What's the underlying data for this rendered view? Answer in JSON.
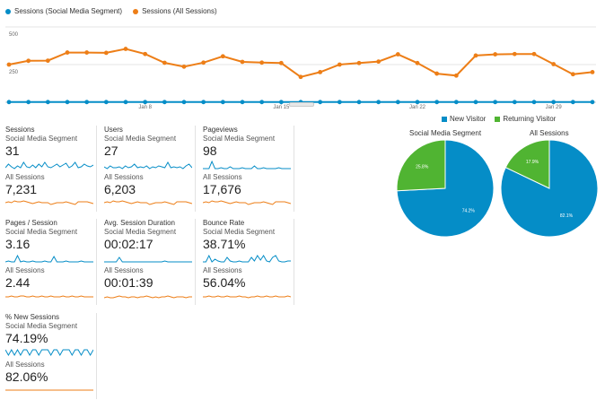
{
  "legend": {
    "series": [
      {
        "label": "Sessions (Social Media Segment)",
        "color": "#058dc7"
      },
      {
        "label": "Sessions (All Sessions)",
        "color": "#ed7e17"
      }
    ]
  },
  "chart_data": {
    "type": "line",
    "ylim": [
      0,
      500
    ],
    "yticks": [
      {
        "label": "500",
        "value": 500
      },
      {
        "label": "250",
        "value": 250
      }
    ],
    "x_tick_labels": [
      {
        "label": "Jan 8",
        "index": 7
      },
      {
        "label": "Jan 15",
        "index": 14
      },
      {
        "label": "Jan 22",
        "index": 21
      },
      {
        "label": "Jan 29",
        "index": 28
      }
    ],
    "series": [
      {
        "name": "Sessions (Social Media Segment)",
        "color": "#058dc7",
        "values": [
          1,
          1,
          1,
          1,
          1,
          1,
          1,
          1,
          1,
          1,
          1,
          1,
          1,
          1,
          1,
          1,
          1,
          1,
          1,
          1,
          1,
          1,
          1,
          1,
          1,
          1,
          1,
          1,
          1,
          1,
          1
        ]
      },
      {
        "name": "Sessions (All Sessions)",
        "color": "#ed7e17",
        "values": [
          250,
          275,
          276,
          330,
          330,
          328,
          354,
          320,
          262,
          236,
          263,
          305,
          268,
          263,
          260,
          168,
          200,
          250,
          260,
          270,
          318,
          260,
          190,
          177,
          310,
          318,
          320,
          320,
          253,
          186,
          200
        ]
      }
    ]
  },
  "metrics": [
    {
      "title": "Sessions",
      "segment_label": "Social Media Segment",
      "segment_value": "31",
      "all_label": "All Sessions",
      "all_value": "7,231",
      "spark_seg": [
        2,
        6,
        3,
        1,
        4,
        2,
        8,
        3,
        2,
        5,
        2,
        6,
        3,
        8,
        3,
        2,
        4,
        6,
        3,
        5,
        7,
        2,
        4,
        8,
        2,
        3,
        6,
        4,
        3,
        5
      ],
      "spark_all": [
        5,
        6,
        5,
        7,
        6,
        6,
        7,
        6,
        5,
        4,
        5,
        6,
        5,
        5,
        5,
        3,
        4,
        5,
        5,
        5,
        6,
        5,
        4,
        3,
        6,
        6,
        6,
        6,
        5,
        4
      ]
    },
    {
      "title": "Users",
      "segment_label": "Social Media Segment",
      "segment_value": "27",
      "all_label": "All Sessions",
      "all_value": "6,203",
      "spark_seg": [
        3,
        1,
        4,
        2,
        2,
        3,
        1,
        4,
        2,
        3,
        6,
        2,
        3,
        2,
        4,
        1,
        3,
        2,
        4,
        3,
        2,
        8,
        2,
        3,
        2,
        3,
        1,
        4,
        6,
        2
      ],
      "spark_all": [
        5,
        6,
        5,
        7,
        6,
        6,
        7,
        6,
        5,
        4,
        5,
        6,
        5,
        5,
        5,
        3,
        4,
        5,
        5,
        5,
        6,
        5,
        4,
        3,
        6,
        6,
        6,
        6,
        5,
        4
      ]
    },
    {
      "title": "Pageviews",
      "segment_label": "Social Media Segment",
      "segment_value": "98",
      "all_label": "All Sessions",
      "all_value": "17,676",
      "spark_seg": [
        1,
        1,
        1,
        9,
        1,
        1,
        2,
        1,
        1,
        3,
        1,
        1,
        1,
        2,
        1,
        1,
        1,
        4,
        1,
        1,
        2,
        1,
        1,
        1,
        1,
        2,
        1,
        1,
        1,
        1
      ],
      "spark_all": [
        5,
        6,
        5,
        7,
        6,
        6,
        7,
        6,
        5,
        4,
        5,
        6,
        5,
        5,
        5,
        3,
        4,
        5,
        5,
        5,
        6,
        5,
        4,
        3,
        6,
        6,
        6,
        6,
        5,
        4
      ]
    },
    {
      "title": "Pages / Session",
      "segment_label": "Social Media Segment",
      "segment_value": "3.16",
      "all_label": "All Sessions",
      "all_value": "2.44",
      "spark_seg": [
        1,
        2,
        1,
        1,
        8,
        1,
        2,
        1,
        1,
        2,
        1,
        1,
        1,
        2,
        1,
        1,
        7,
        1,
        1,
        1,
        2,
        1,
        1,
        1,
        1,
        2,
        1,
        1,
        1,
        1
      ],
      "spark_all": [
        4,
        4,
        5,
        4,
        4,
        5,
        5,
        4,
        4,
        5,
        4,
        4,
        5,
        4,
        4,
        5,
        4,
        4,
        4,
        5,
        4,
        4,
        5,
        4,
        4,
        5,
        4,
        4,
        4,
        4
      ]
    },
    {
      "title": "Avg. Session Duration",
      "segment_label": "Social Media Segment",
      "segment_value": "00:02:17",
      "all_label": "All Sessions",
      "all_value": "00:01:39",
      "spark_seg": [
        1,
        1,
        1,
        1,
        1,
        6,
        1,
        1,
        1,
        1,
        1,
        1,
        1,
        1,
        1,
        1,
        1,
        1,
        1,
        1,
        2,
        1,
        1,
        1,
        1,
        1,
        1,
        1,
        1,
        1
      ],
      "spark_all": [
        3,
        4,
        3,
        3,
        4,
        5,
        4,
        4,
        3,
        4,
        4,
        3,
        4,
        4,
        5,
        4,
        3,
        4,
        3,
        4,
        4,
        5,
        4,
        3,
        4,
        4,
        4,
        3,
        4,
        4
      ]
    },
    {
      "title": "Bounce Rate",
      "segment_label": "Social Media Segment",
      "segment_value": "38.71%",
      "all_label": "All Sessions",
      "all_value": "56.04%",
      "spark_seg": [
        1,
        1,
        8,
        1,
        4,
        2,
        1,
        1,
        6,
        2,
        1,
        1,
        2,
        1,
        1,
        1,
        6,
        2,
        8,
        3,
        8,
        2,
        1,
        6,
        8,
        2,
        1,
        1,
        2,
        2
      ],
      "spark_all": [
        4,
        4,
        5,
        4,
        4,
        5,
        4,
        4,
        5,
        4,
        4,
        4,
        5,
        4,
        4,
        3,
        4,
        4,
        5,
        4,
        4,
        5,
        4,
        4,
        5,
        4,
        4,
        4,
        5,
        4
      ]
    },
    {
      "title": "% New Sessions",
      "segment_label": "Social Media Segment",
      "segment_value": "74.19%",
      "all_label": "All Sessions",
      "all_value": "82.06%",
      "spark_seg": [
        8,
        2,
        8,
        2,
        8,
        2,
        8,
        8,
        2,
        8,
        8,
        2,
        8,
        8,
        8,
        2,
        8,
        8,
        2,
        8,
        8,
        8,
        2,
        8,
        8,
        2,
        8,
        8,
        2,
        8
      ],
      "spark_all": [
        5,
        5,
        5,
        5,
        5,
        5,
        5,
        5,
        5,
        5,
        5,
        5,
        5,
        5,
        5,
        5,
        5,
        5,
        5,
        5,
        5,
        5,
        5,
        5,
        5,
        5,
        5,
        5,
        5,
        5
      ]
    }
  ],
  "pie_legend": [
    {
      "label": "New Visitor",
      "color": "#058dc7"
    },
    {
      "label": "Returning Visitor",
      "color": "#50b432"
    }
  ],
  "pies": [
    {
      "title": "Social Media Segment",
      "slices": [
        {
          "name": "New Visitor",
          "value": 74.2,
          "label": "74.2%",
          "color": "#058dc7"
        },
        {
          "name": "Returning Visitor",
          "value": 25.8,
          "label": "25.8%",
          "color": "#50b432"
        }
      ]
    },
    {
      "title": "All Sessions",
      "slices": [
        {
          "name": "New Visitor",
          "value": 82.1,
          "label": "82.1%",
          "color": "#058dc7"
        },
        {
          "name": "Returning Visitor",
          "value": 17.9,
          "label": "17.9%",
          "color": "#50b432"
        }
      ]
    }
  ]
}
